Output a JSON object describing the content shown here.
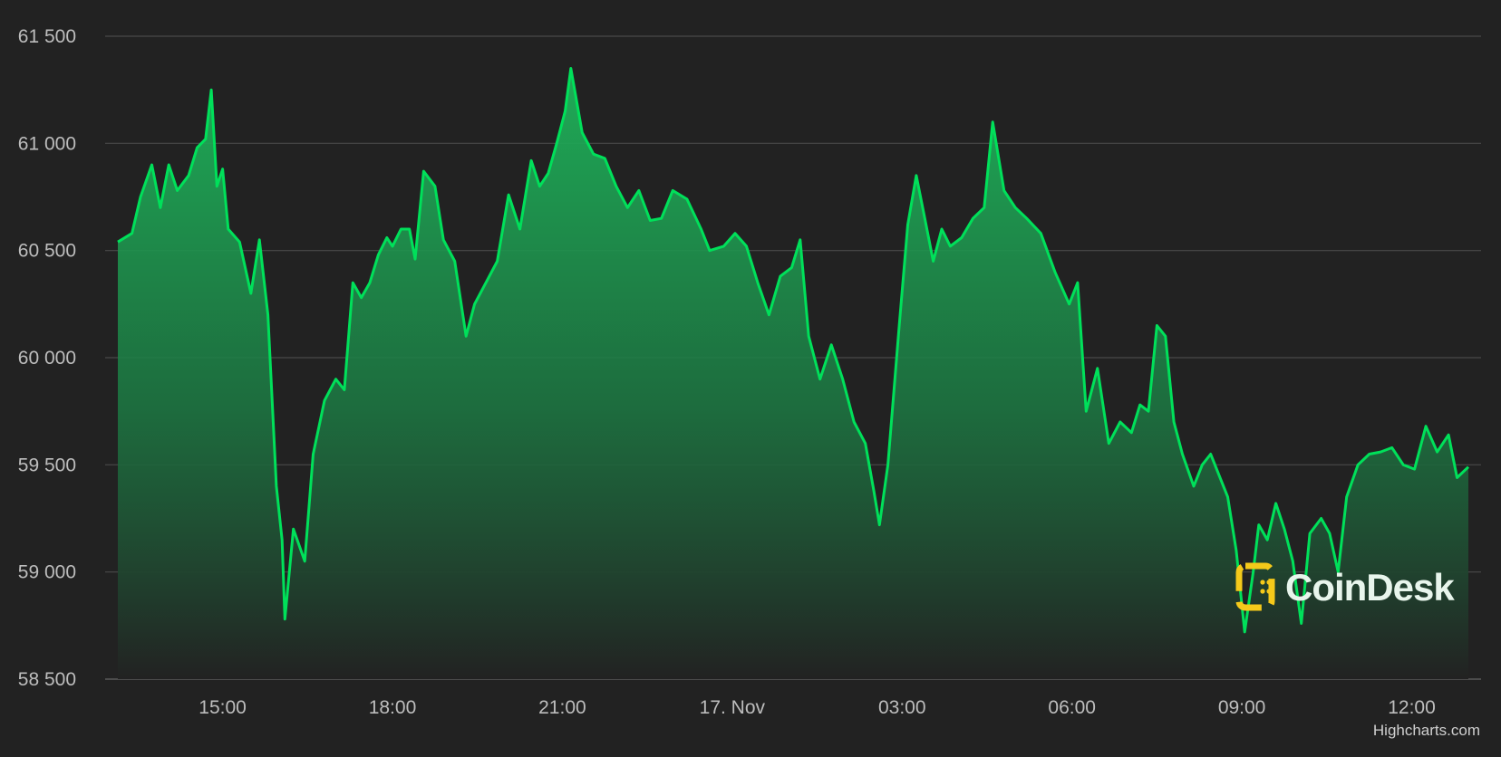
{
  "chart_data": {
    "type": "area",
    "title": "",
    "xlabel": "",
    "ylabel": "",
    "ylim": [
      58500,
      61500
    ],
    "y_ticks": [
      58500,
      59000,
      59500,
      60000,
      60500,
      61000,
      61500
    ],
    "y_tick_labels": [
      "58 500",
      "59 000",
      "59 500",
      "60 000",
      "60 500",
      "61 000",
      "61 500"
    ],
    "x_ticks": [
      {
        "hour": 15,
        "label": "15:00"
      },
      {
        "hour": 18,
        "label": "18:00"
      },
      {
        "hour": 21,
        "label": "21:00"
      },
      {
        "hour": 24,
        "label": "17. Nov"
      },
      {
        "hour": 27,
        "label": "03:00"
      },
      {
        "hour": 30,
        "label": "06:00"
      },
      {
        "hour": 33,
        "label": "09:00"
      },
      {
        "hour": 36,
        "label": "12:00"
      }
    ],
    "xlim_hours": [
      13.15,
      37.0
    ],
    "grid": true,
    "line_color": "#00e05a",
    "fill_top_color": "#1fb35a",
    "fill_bottom_color": "#222222",
    "series": [
      {
        "points": [
          [
            13.15,
            60540
          ],
          [
            13.4,
            60580
          ],
          [
            13.55,
            60750
          ],
          [
            13.75,
            60900
          ],
          [
            13.9,
            60700
          ],
          [
            14.05,
            60900
          ],
          [
            14.2,
            60780
          ],
          [
            14.4,
            60850
          ],
          [
            14.55,
            60980
          ],
          [
            14.7,
            61020
          ],
          [
            14.8,
            61250
          ],
          [
            14.9,
            60800
          ],
          [
            15.0,
            60880
          ],
          [
            15.1,
            60600
          ],
          [
            15.3,
            60540
          ],
          [
            15.5,
            60300
          ],
          [
            15.65,
            60550
          ],
          [
            15.8,
            60200
          ],
          [
            15.95,
            59400
          ],
          [
            16.05,
            59150
          ],
          [
            16.1,
            58780
          ],
          [
            16.25,
            59200
          ],
          [
            16.45,
            59050
          ],
          [
            16.6,
            59550
          ],
          [
            16.8,
            59800
          ],
          [
            17.0,
            59900
          ],
          [
            17.15,
            59850
          ],
          [
            17.3,
            60350
          ],
          [
            17.45,
            60280
          ],
          [
            17.6,
            60350
          ],
          [
            17.75,
            60480
          ],
          [
            17.9,
            60560
          ],
          [
            18.0,
            60520
          ],
          [
            18.15,
            60600
          ],
          [
            18.3,
            60600
          ],
          [
            18.4,
            60460
          ],
          [
            18.55,
            60870
          ],
          [
            18.75,
            60800
          ],
          [
            18.9,
            60550
          ],
          [
            19.1,
            60450
          ],
          [
            19.3,
            60100
          ],
          [
            19.45,
            60250
          ],
          [
            19.65,
            60350
          ],
          [
            19.85,
            60450
          ],
          [
            20.05,
            60760
          ],
          [
            20.25,
            60600
          ],
          [
            20.45,
            60920
          ],
          [
            20.6,
            60800
          ],
          [
            20.75,
            60860
          ],
          [
            20.9,
            61000
          ],
          [
            21.05,
            61150
          ],
          [
            21.15,
            61350
          ],
          [
            21.35,
            61050
          ],
          [
            21.55,
            60950
          ],
          [
            21.75,
            60930
          ],
          [
            21.95,
            60800
          ],
          [
            22.15,
            60700
          ],
          [
            22.35,
            60780
          ],
          [
            22.55,
            60640
          ],
          [
            22.75,
            60650
          ],
          [
            22.95,
            60780
          ],
          [
            23.2,
            60740
          ],
          [
            23.45,
            60600
          ],
          [
            23.6,
            60500
          ],
          [
            23.85,
            60520
          ],
          [
            24.05,
            60580
          ],
          [
            24.25,
            60520
          ],
          [
            24.45,
            60350
          ],
          [
            24.65,
            60200
          ],
          [
            24.85,
            60380
          ],
          [
            25.05,
            60420
          ],
          [
            25.2,
            60550
          ],
          [
            25.35,
            60100
          ],
          [
            25.55,
            59900
          ],
          [
            25.75,
            60060
          ],
          [
            25.95,
            59900
          ],
          [
            26.15,
            59700
          ],
          [
            26.35,
            59600
          ],
          [
            26.5,
            59380
          ],
          [
            26.6,
            59220
          ],
          [
            26.75,
            59500
          ],
          [
            26.95,
            60150
          ],
          [
            27.1,
            60620
          ],
          [
            27.25,
            60850
          ],
          [
            27.4,
            60650
          ],
          [
            27.55,
            60450
          ],
          [
            27.7,
            60600
          ],
          [
            27.85,
            60520
          ],
          [
            28.05,
            60560
          ],
          [
            28.25,
            60650
          ],
          [
            28.45,
            60700
          ],
          [
            28.6,
            61100
          ],
          [
            28.8,
            60780
          ],
          [
            29.0,
            60700
          ],
          [
            29.2,
            60650
          ],
          [
            29.45,
            60580
          ],
          [
            29.7,
            60400
          ],
          [
            29.95,
            60250
          ],
          [
            30.1,
            60350
          ],
          [
            30.25,
            59750
          ],
          [
            30.45,
            59950
          ],
          [
            30.65,
            59600
          ],
          [
            30.85,
            59700
          ],
          [
            31.05,
            59650
          ],
          [
            31.2,
            59780
          ],
          [
            31.35,
            59750
          ],
          [
            31.5,
            60150
          ],
          [
            31.65,
            60100
          ],
          [
            31.8,
            59700
          ],
          [
            31.95,
            59550
          ],
          [
            32.15,
            59400
          ],
          [
            32.3,
            59500
          ],
          [
            32.45,
            59550
          ],
          [
            32.6,
            59450
          ],
          [
            32.75,
            59350
          ],
          [
            32.9,
            59100
          ],
          [
            33.05,
            58720
          ],
          [
            33.2,
            59000
          ],
          [
            33.3,
            59220
          ],
          [
            33.45,
            59150
          ],
          [
            33.6,
            59320
          ],
          [
            33.75,
            59200
          ],
          [
            33.9,
            59050
          ],
          [
            34.05,
            58760
          ],
          [
            34.2,
            59180
          ],
          [
            34.4,
            59250
          ],
          [
            34.55,
            59180
          ],
          [
            34.7,
            59000
          ],
          [
            34.85,
            59350
          ],
          [
            35.05,
            59500
          ],
          [
            35.25,
            59550
          ],
          [
            35.45,
            59560
          ],
          [
            35.65,
            59580
          ],
          [
            35.85,
            59500
          ],
          [
            36.05,
            59480
          ],
          [
            36.25,
            59680
          ],
          [
            36.45,
            59560
          ],
          [
            36.65,
            59640
          ],
          [
            36.8,
            59440
          ],
          [
            37.0,
            59490
          ]
        ]
      }
    ]
  },
  "credit": "Highcharts.com",
  "logo": {
    "text": "CoinDesk",
    "mark_color": "#f5c91a"
  }
}
